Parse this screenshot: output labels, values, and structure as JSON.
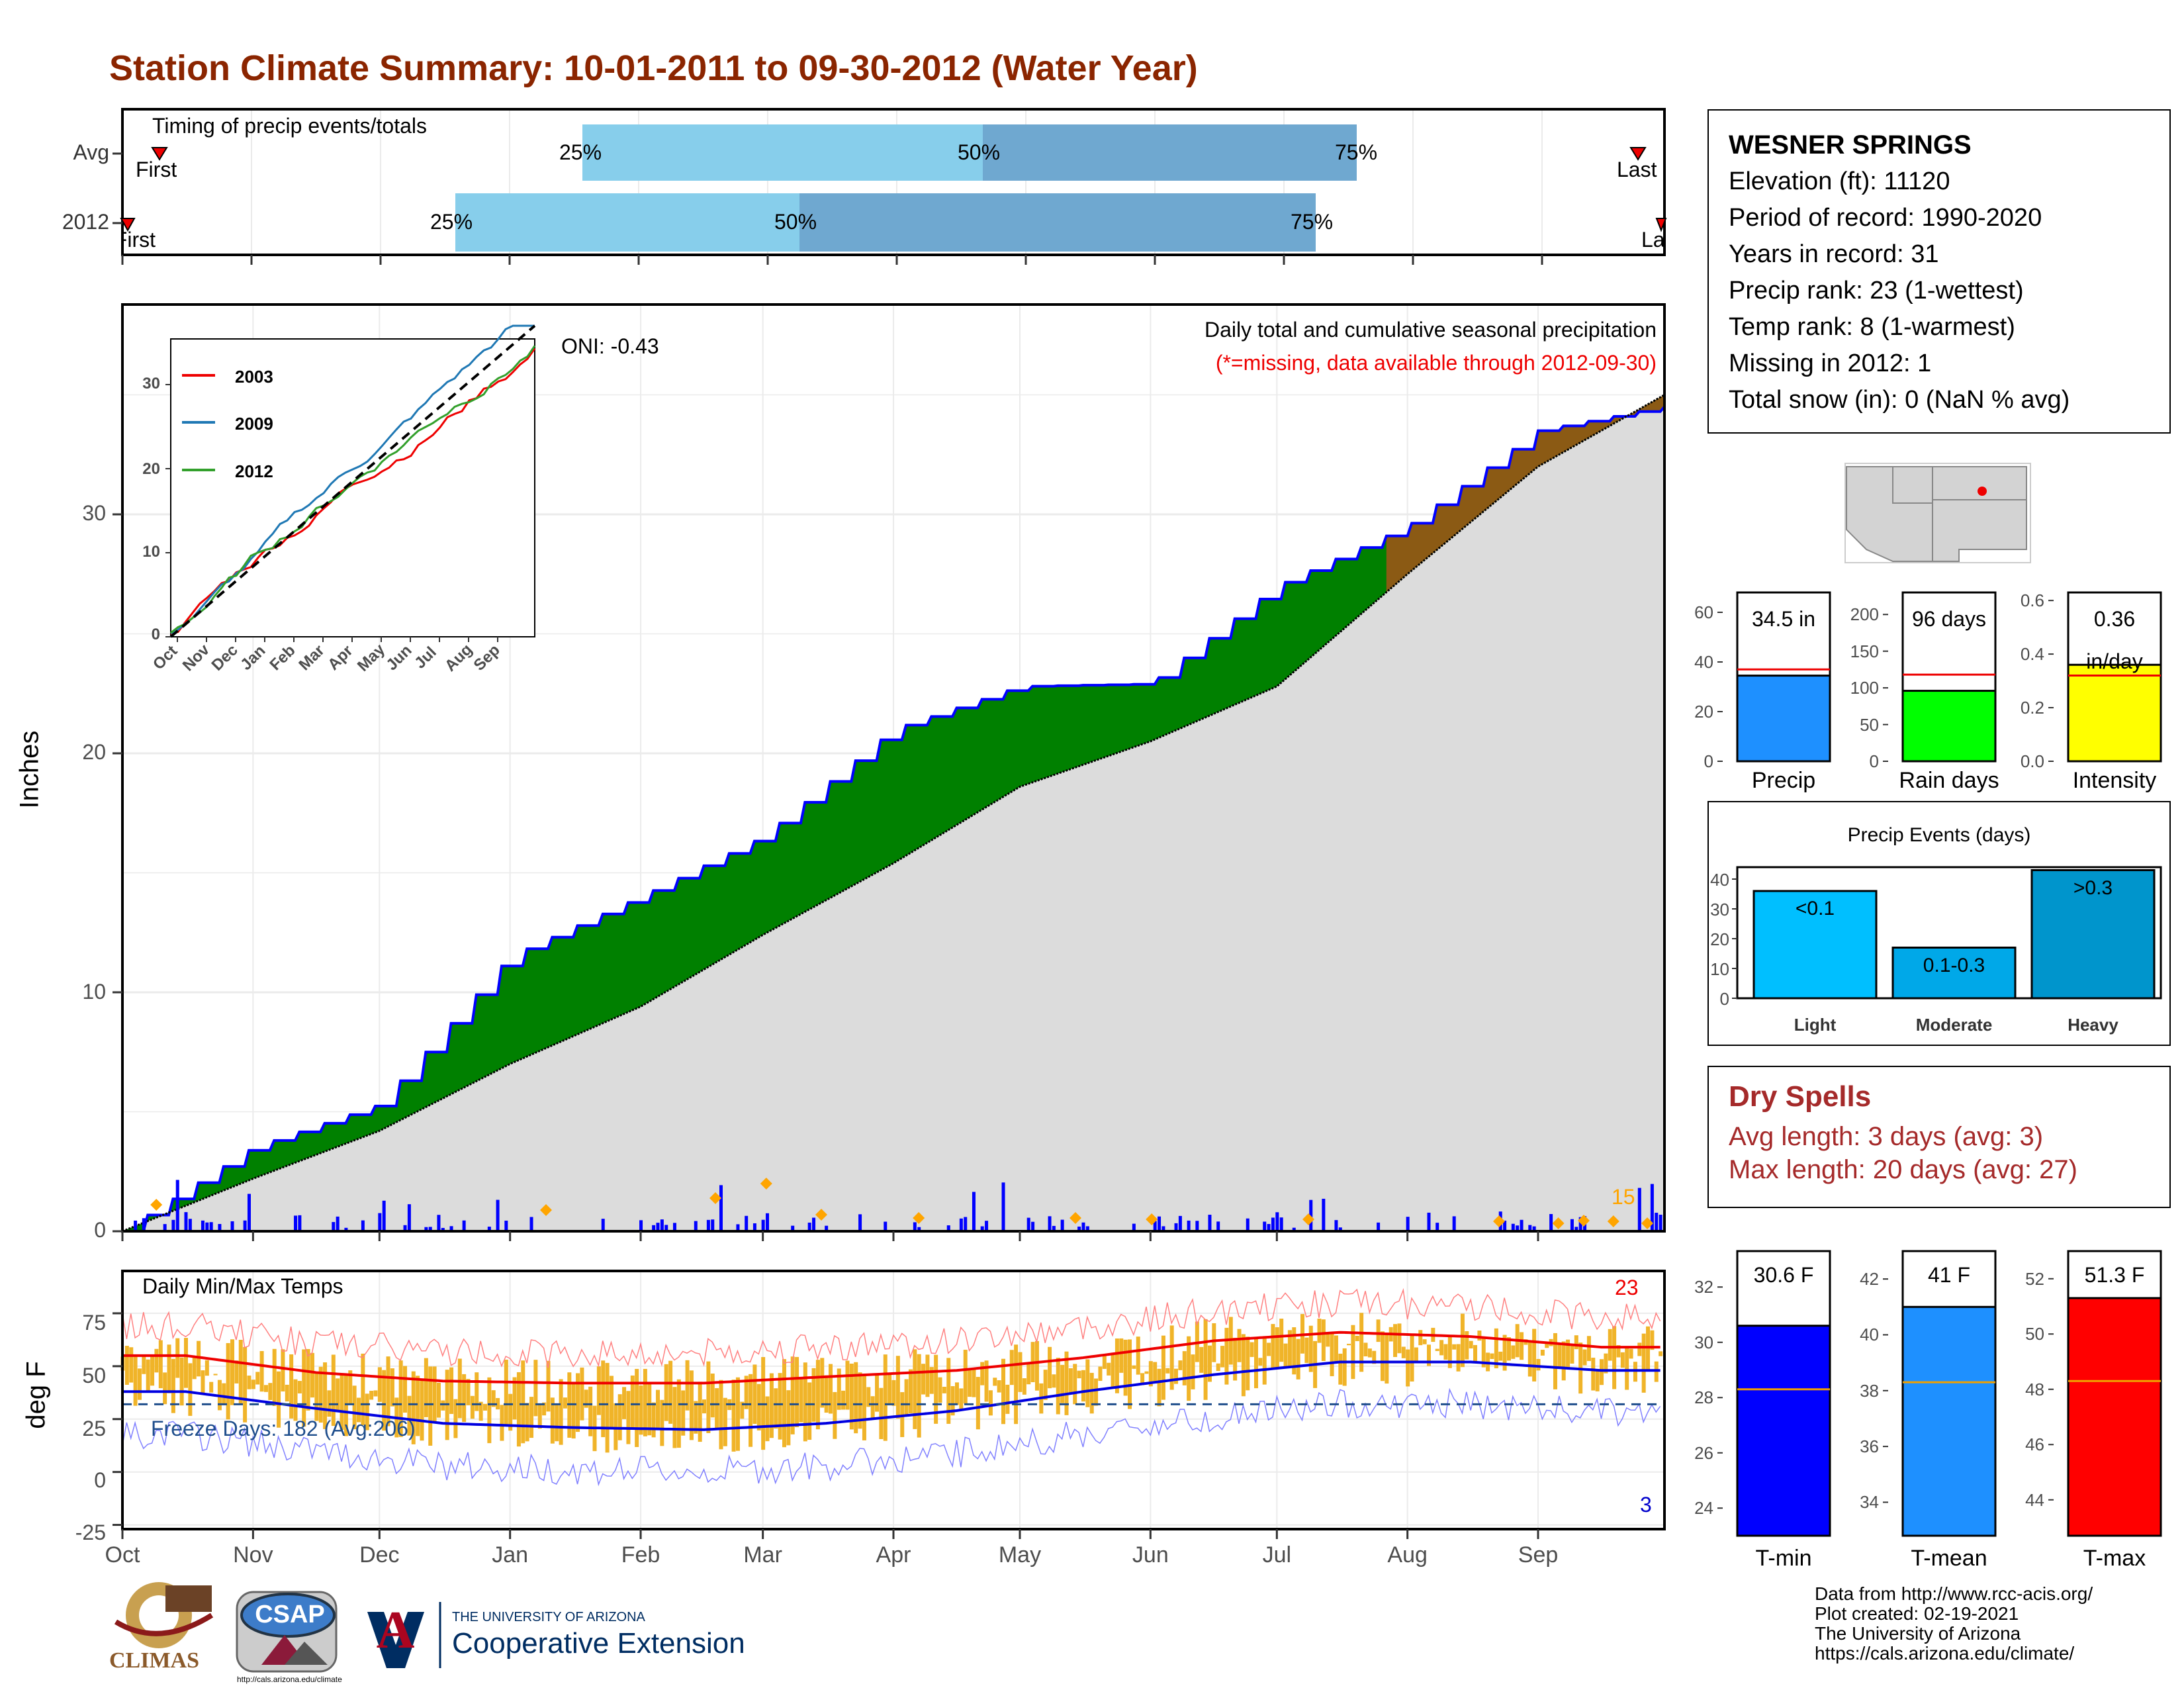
{
  "title": "Station Climate Summary: 10-01-2011 to 09-30-2012 (Water Year)",
  "timing": {
    "title": "Timing of precip events/totals",
    "rows": [
      {
        "label": "Avg",
        "first": "First",
        "last": "Last",
        "p25": "25%",
        "p50": "50%",
        "p75": "75%"
      },
      {
        "label": "2012",
        "first": "First",
        "last": "Last",
        "p25": "25%",
        "p50": "50%",
        "p75": "75%"
      }
    ]
  },
  "main": {
    "ylabel": "Inches",
    "title": "Daily total and cumulative seasonal precipitation",
    "subtitle": "(*=missing, data available through 2012-09-30)",
    "oni": "ONI: -0.43",
    "yticks": [
      "0",
      "10",
      "20",
      "30"
    ],
    "annot_15": "15"
  },
  "inset": {
    "legend": [
      "2003",
      "2009",
      "2012"
    ],
    "yticks": [
      "0",
      "10",
      "20",
      "30"
    ],
    "xticks": [
      "Oct",
      "Nov",
      "Dec",
      "Jan",
      "Feb",
      "Mar",
      "Apr",
      "May",
      "Jun",
      "Jul",
      "Aug",
      "Sep"
    ]
  },
  "temps": {
    "title": "Daily Min/Max Temps",
    "ylabel": "deg F",
    "freeze": "Freeze Days: 182 (Avg:206)",
    "max_count": "23",
    "min_count": "3",
    "yticks": [
      "-25",
      "0",
      "25",
      "50",
      "75"
    ]
  },
  "months": [
    "Oct",
    "Nov",
    "Dec",
    "Jan",
    "Feb",
    "Mar",
    "Apr",
    "May",
    "Jun",
    "Jul",
    "Aug",
    "Sep"
  ],
  "station": {
    "name": "WESNER SPRINGS",
    "lines": [
      "Elevation (ft): 11120",
      "Period of record: 1990-2020",
      "Years in record: 31",
      "Precip rank: 23 (1-wettest)",
      "Temp rank: 8 (1-warmest)",
      "Missing in 2012: 1",
      "Total snow (in): 0 (NaN % avg)"
    ]
  },
  "mini_bars": [
    {
      "label": "Precip",
      "value_label": "34.5 in",
      "yticks": [
        "0",
        "20",
        "40",
        "60"
      ],
      "color": "#1e90ff"
    },
    {
      "label": "Rain days",
      "value_label": "96 days",
      "yticks": [
        "0",
        "50",
        "100",
        "150",
        "200"
      ],
      "color": "#00ff00"
    },
    {
      "label": "Intensity",
      "value_label": "0.36 in/day",
      "yticks": [
        "0.0",
        "0.2",
        "0.4",
        "0.6"
      ],
      "color": "#ffff00"
    }
  ],
  "events": {
    "title": "Precip Events (days)",
    "yticks": [
      "0",
      "10",
      "20",
      "30",
      "40"
    ],
    "bars": [
      {
        "cat": "Light",
        "label": "<0.1",
        "color": "#00bfff"
      },
      {
        "cat": "Moderate",
        "label": "0.1-0.3",
        "color": "#00a8e8"
      },
      {
        "cat": "Heavy",
        "label": ">0.3",
        "color": "#0095cc"
      }
    ]
  },
  "dry": {
    "title": "Dry Spells",
    "avg": "Avg length: 3 days (avg: 3)",
    "max": "Max length: 20 days (avg: 27)"
  },
  "temp_bars": [
    {
      "label": "T-min",
      "value_label": "30.6 F",
      "yticks": [
        "24",
        "26",
        "28",
        "30",
        "32"
      ],
      "color": "#0000ff"
    },
    {
      "label": "T-mean",
      "value_label": "41 F",
      "yticks": [
        "34",
        "36",
        "38",
        "40",
        "42"
      ],
      "color": "#1e90ff"
    },
    {
      "label": "T-max",
      "value_label": "51.3 F",
      "yticks": [
        "44",
        "46",
        "48",
        "50",
        "52"
      ],
      "color": "#ff0000"
    }
  ],
  "footer": {
    "lines": [
      "Data from http://www.rcc-acis.org/",
      "Plot created: 02-19-2021",
      "The University of Arizona",
      "https://cals.arizona.edu/climate/"
    ],
    "climas": "CLIMAS",
    "csap": "CSAP",
    "csap_url": "http://cals.arizona.edu/climate",
    "ua_top": "THE UNIVERSITY OF ARIZONA",
    "ua_name": "Cooperative Extension",
    "ua_letter": "A"
  },
  "chart_data": [
    {
      "type": "line",
      "title": "Daily total and cumulative seasonal precipitation",
      "ylabel": "Inches",
      "ylim": [
        0,
        38
      ],
      "x": [
        "Oct",
        "Nov",
        "Dec",
        "Jan",
        "Feb",
        "Mar",
        "Apr",
        "May",
        "Jun",
        "Jul",
        "Aug",
        "Sep",
        "Sep-30"
      ],
      "series": [
        {
          "values": [
            0,
            3.5,
            5.3,
            11.5,
            14.0,
            16.5,
            21.0,
            22.8,
            22.9,
            27.0,
            29.5,
            33.5,
            34.5
          ]
        },
        {
          "values": [
            0,
            2.2,
            4.2,
            7.0,
            9.4,
            12.4,
            15.4,
            18.6,
            20.5,
            22.8,
            27.5,
            32.0,
            35.0
          ]
        }
      ]
    },
    {
      "type": "line",
      "title": "Daily Min/Max Temps",
      "ylabel": "deg F",
      "ylim": [
        -27,
        95
      ],
      "x": [
        "Oct",
        "Nov",
        "Dec",
        "Jan",
        "Feb",
        "Mar",
        "Apr",
        "May",
        "Jun",
        "Jul",
        "Aug",
        "Sep"
      ],
      "series": [
        {
          "values": [
            55,
            47,
            43,
            42,
            42,
            45,
            48,
            54,
            62,
            66,
            64,
            59
          ]
        },
        {
          "values": [
            30,
            22,
            15,
            13,
            12,
            15,
            21,
            30,
            38,
            44,
            44,
            40
          ]
        }
      ]
    },
    {
      "type": "bar",
      "title": "Precip Events (days)",
      "categories": [
        "Light",
        "Moderate",
        "Heavy"
      ],
      "values": [
        36,
        17,
        43
      ],
      "ylim": [
        0,
        44
      ]
    },
    {
      "type": "bar",
      "categories": [
        "Precip",
        "Rain days",
        "Intensity"
      ],
      "values": [
        34.5,
        96,
        0.36
      ]
    },
    {
      "type": "bar",
      "categories": [
        "T-min",
        "T-mean",
        "T-max"
      ],
      "values": [
        30.6,
        41,
        51.3
      ]
    }
  ]
}
